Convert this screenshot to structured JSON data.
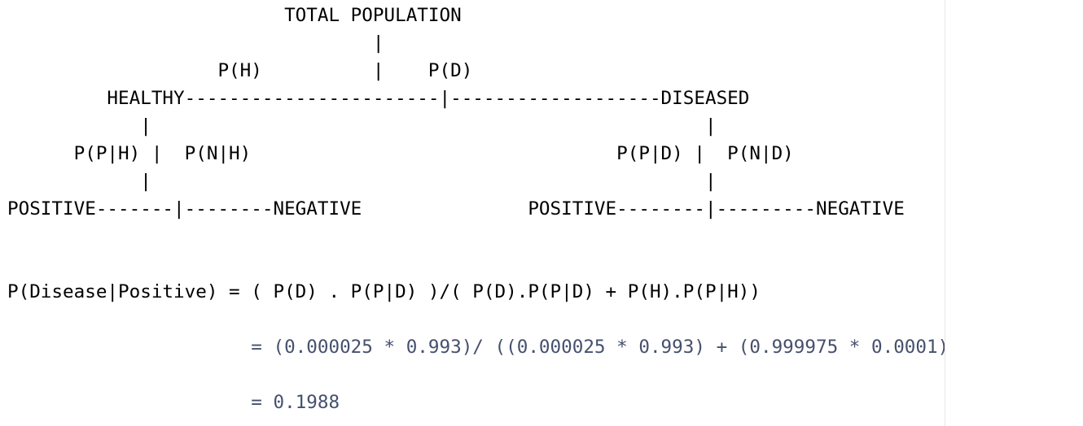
{
  "diagram": {
    "lines": [
      "                         TOTAL POPULATION",
      "                                 |",
      "                   P(H)          |    P(D)",
      "         HEALTHY-----------------------|-------------------DISEASED",
      "            |                                                  |",
      "      P(P|H) |  P(N|H)                                 P(P|D) |  P(N|D)",
      "            |                                                  |",
      "POSITIVE-------|--------NEGATIVE               POSITIVE--------|---------NEGATIVE"
    ]
  },
  "formula": {
    "lines": [
      "",
      "",
      "P(Disease|Positive) = ( P(D) . P(P|D) )/( P(D).P(P|D) + P(H).P(P|H))",
      "",
      "                      = (0.000025 * 0.993)/ ((0.000025 * 0.993) + (0.999975 * 0.0001))",
      "",
      "                      = 0.1988"
    ]
  },
  "colors": {
    "text": "#000000",
    "calc_text": "#46506e",
    "divider": "#e6e6e6"
  }
}
